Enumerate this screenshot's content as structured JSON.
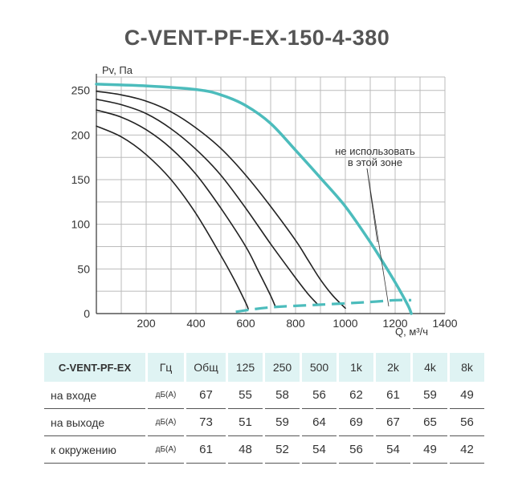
{
  "title": "C-VENT-PF-EX-150-4-380",
  "chart_data": {
    "type": "line",
    "ylabel": "Pv, Па",
    "xlabel": "Q, м³/ч",
    "xlim": [
      0,
      1400
    ],
    "ylim": [
      0,
      260
    ],
    "x_ticks": [
      200,
      400,
      600,
      800,
      1000,
      1200,
      1400
    ],
    "y_ticks": [
      0,
      50,
      100,
      150,
      200,
      250
    ],
    "grid": true,
    "colors": {
      "main": "#4cbcbc",
      "black": "#222222",
      "grid": "#bbbbbb"
    },
    "series": [
      {
        "color": "#4cbcbc",
        "points": [
          [
            0,
            257
          ],
          [
            200,
            255
          ],
          [
            400,
            251
          ],
          [
            500,
            245
          ],
          [
            600,
            233
          ],
          [
            700,
            213
          ],
          [
            800,
            183
          ],
          [
            900,
            152
          ],
          [
            1000,
            120
          ],
          [
            1100,
            80
          ],
          [
            1150,
            58
          ],
          [
            1200,
            35
          ],
          [
            1250,
            10
          ],
          [
            1265,
            0
          ]
        ]
      },
      {
        "color": "#222222",
        "points": [
          [
            0,
            249
          ],
          [
            100,
            245
          ],
          [
            200,
            238
          ],
          [
            300,
            226
          ],
          [
            400,
            208
          ],
          [
            500,
            185
          ],
          [
            600,
            155
          ],
          [
            700,
            120
          ],
          [
            800,
            82
          ],
          [
            850,
            60
          ],
          [
            900,
            38
          ],
          [
            950,
            20
          ],
          [
            1000,
            6
          ]
        ]
      },
      {
        "color": "#222222",
        "points": [
          [
            0,
            240
          ],
          [
            100,
            234
          ],
          [
            200,
            224
          ],
          [
            300,
            207
          ],
          [
            400,
            184
          ],
          [
            500,
            155
          ],
          [
            600,
            118
          ],
          [
            700,
            78
          ],
          [
            800,
            40
          ],
          [
            850,
            22
          ],
          [
            890,
            10
          ]
        ]
      },
      {
        "color": "#222222",
        "points": [
          [
            0,
            228
          ],
          [
            100,
            220
          ],
          [
            200,
            206
          ],
          [
            300,
            185
          ],
          [
            400,
            156
          ],
          [
            500,
            118
          ],
          [
            600,
            75
          ],
          [
            650,
            48
          ],
          [
            700,
            20
          ],
          [
            720,
            7
          ]
        ]
      },
      {
        "color": "#222222",
        "points": [
          [
            0,
            210
          ],
          [
            100,
            198
          ],
          [
            200,
            178
          ],
          [
            300,
            150
          ],
          [
            400,
            112
          ],
          [
            500,
            65
          ],
          [
            550,
            40
          ],
          [
            600,
            12
          ],
          [
            610,
            5
          ]
        ]
      }
    ],
    "boundary": {
      "color": "#4cbcbc",
      "dashed": true,
      "points": [
        [
          560,
          2
        ],
        [
          700,
          7
        ],
        [
          900,
          10
        ],
        [
          1100,
          13
        ],
        [
          1200,
          15
        ],
        [
          1265,
          15
        ]
      ]
    },
    "annotation": {
      "line1": "не использовать",
      "line2": "в этой зоне"
    }
  },
  "table": {
    "header": [
      "C-VENT-PF-EX",
      "Гц",
      "Общ",
      "125",
      "250",
      "500",
      "1k",
      "2k",
      "4k",
      "8k"
    ],
    "rows": [
      {
        "label": "на входе",
        "unit": "дБ(А)",
        "values": [
          "67",
          "55",
          "58",
          "56",
          "62",
          "61",
          "59",
          "49"
        ]
      },
      {
        "label": "на выходе",
        "unit": "дБ(А)",
        "values": [
          "73",
          "51",
          "59",
          "64",
          "69",
          "67",
          "65",
          "56"
        ]
      },
      {
        "label": "к окружению",
        "unit": "дБ(А)",
        "values": [
          "61",
          "48",
          "52",
          "54",
          "56",
          "54",
          "49",
          "42"
        ]
      }
    ]
  }
}
